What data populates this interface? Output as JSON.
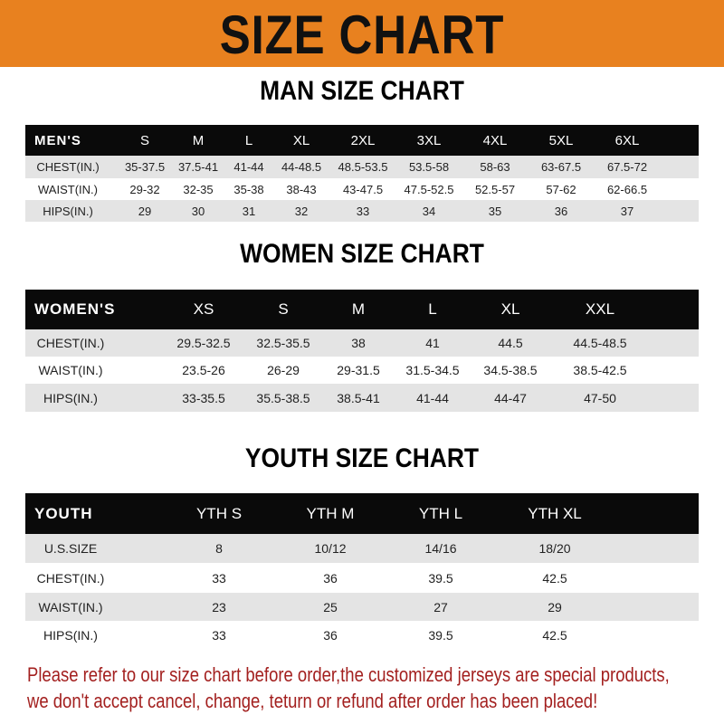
{
  "title": "SIZE CHART",
  "colors": {
    "banner": "#e8811f",
    "header_row": "#0a0a0a",
    "stripe": "#e4e4e4",
    "notice": "#a3201f"
  },
  "men": {
    "title": "MAN SIZE CHART",
    "header": [
      "MEN'S",
      "S",
      "M",
      "L",
      "XL",
      "2XL",
      "3XL",
      "4XL",
      "5XL",
      "6XL"
    ],
    "rows": [
      [
        "CHEST(IN.)",
        "35-37.5",
        "37.5-41",
        "41-44",
        "44-48.5",
        "48.5-53.5",
        "53.5-58",
        "58-63",
        "63-67.5",
        "67.5-72"
      ],
      [
        "WAIST(IN.)",
        "29-32",
        "32-35",
        "35-38",
        "38-43",
        "43-47.5",
        "47.5-52.5",
        "52.5-57",
        "57-62",
        "62-66.5"
      ],
      [
        "HIPS(IN.)",
        "29",
        "30",
        "31",
        "32",
        "33",
        "34",
        "35",
        "36",
        "37"
      ]
    ]
  },
  "women": {
    "title": "WOMEN SIZE CHART",
    "header": [
      "WOMEN'S",
      "XS",
      "S",
      "M",
      "L",
      "XL",
      "XXL"
    ],
    "rows": [
      [
        "CHEST(IN.)",
        "29.5-32.5",
        "32.5-35.5",
        "38",
        "41",
        "44.5",
        "44.5-48.5"
      ],
      [
        "WAIST(IN.)",
        "23.5-26",
        "26-29",
        "29-31.5",
        "31.5-34.5",
        "34.5-38.5",
        "38.5-42.5"
      ],
      [
        "HIPS(IN.)",
        "33-35.5",
        "35.5-38.5",
        "38.5-41",
        "41-44",
        "44-47",
        "47-50"
      ]
    ]
  },
  "youth": {
    "title": "YOUTH SIZE CHART",
    "header": [
      "YOUTH",
      "YTH S",
      "YTH M",
      "YTH L",
      "YTH XL"
    ],
    "rows": [
      [
        "U.S.SIZE",
        "8",
        "10/12",
        "14/16",
        "18/20"
      ],
      [
        "CHEST(IN.)",
        "33",
        "36",
        "39.5",
        "42.5"
      ],
      [
        "WAIST(IN.)",
        "23",
        "25",
        "27",
        "29"
      ],
      [
        "HIPS(IN.)",
        "33",
        "36",
        "39.5",
        "42.5"
      ]
    ]
  },
  "notice": [
    "Please refer to our size chart before order,the customized jerseys are special products,",
    "we don't accept cancel, change, teturn or refund after order has been placed!"
  ]
}
